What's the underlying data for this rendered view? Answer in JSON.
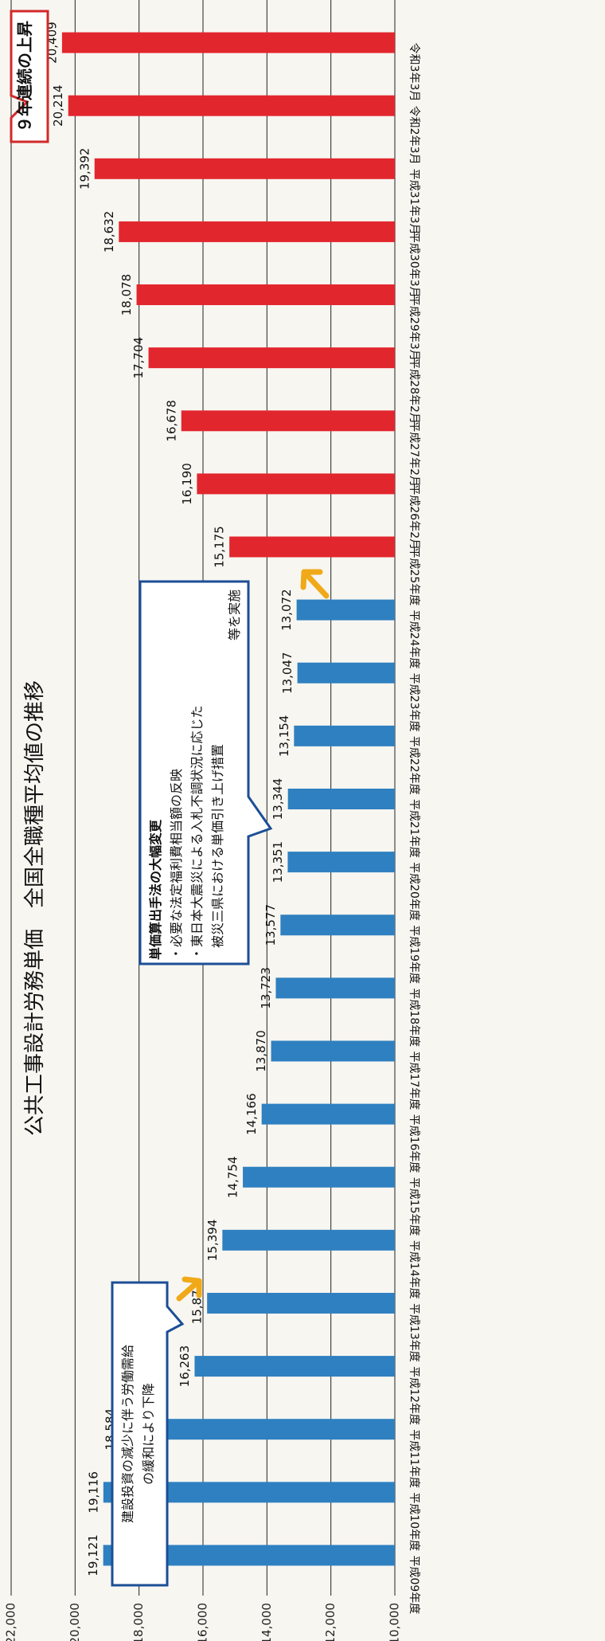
{
  "chart_data": {
    "type": "bar",
    "orientation": "horizontal",
    "title": "公共工事設計労務単価　全国全職種平均値の推移",
    "categories": [
      "平成09年度",
      "平成10年度",
      "平成11年度",
      "平成12年度",
      "平成13年度",
      "平成14年度",
      "平成15年度",
      "平成16年度",
      "平成17年度",
      "平成18年度",
      "平成19年度",
      "平成20年度",
      "平成21年度",
      "平成22年度",
      "平成23年度",
      "平成24年度",
      "平成25年度",
      "平成26年2月",
      "平成27年2月",
      "平成28年2月",
      "平成29年3月",
      "平成30年3月",
      "平成31年3月",
      "令和2年3月",
      "令和3年3月"
    ],
    "values": [
      19121,
      19116,
      18584,
      16263,
      15871,
      15394,
      14754,
      14166,
      13870,
      13723,
      13577,
      13351,
      13344,
      13154,
      13047,
      13072,
      15175,
      16190,
      16678,
      17704,
      18078,
      18632,
      19392,
      20214,
      20409
    ],
    "value_labels": [
      "19,121",
      "19,116",
      "18,584",
      "16,263",
      "15,871",
      "15,394",
      "14,754",
      "14,166",
      "13,870",
      "13,723",
      "13,577",
      "13,351",
      "13,344",
      "13,154",
      "13,047",
      "13,072",
      "15,175",
      "16,190",
      "16,678",
      "17,704",
      "18,078",
      "18,632",
      "19,392",
      "20,214",
      "20,409"
    ],
    "value_axis": {
      "min": 10000,
      "max": 22000,
      "ticks": [
        "10,000",
        "12,000",
        "14,000",
        "16,000",
        "18,000",
        "20,000",
        "22,000"
      ],
      "gridlines": true
    },
    "colors": {
      "blue": "#2f80c0",
      "red": "#e2262d",
      "arrow": "#f0a918",
      "callout_border": "#1c4e96"
    },
    "red_from_index": 16,
    "annotations": {
      "decline": {
        "lines": [
          "建設投資の減少に伴う労働需給",
          "の緩和により下降"
        ]
      },
      "change": {
        "lines": [
          "単価算出手法の大幅変更",
          "・必要な法定福利費相当額の反映",
          "・東日本大震災による入札不調状況に応じた",
          "被災三県における単価引き上げ措置",
          "等を実施"
        ]
      },
      "rise": {
        "text": "９年連続の上昇"
      }
    }
  }
}
